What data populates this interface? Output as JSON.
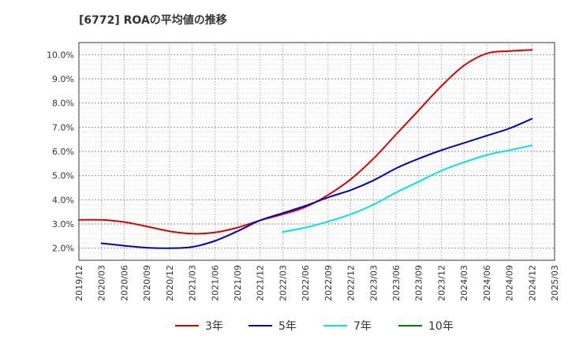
{
  "chart_data": {
    "type": "line",
    "title": "[6772]  ROAの平均値の推移",
    "xlabel": "",
    "ylabel": "",
    "x_ticks": [
      "2019/12",
      "2020/03",
      "2020/06",
      "2020/09",
      "2020/12",
      "2021/03",
      "2021/06",
      "2021/09",
      "2021/12",
      "2022/03",
      "2022/06",
      "2022/09",
      "2022/12",
      "2023/03",
      "2023/06",
      "2023/09",
      "2023/12",
      "2024/03",
      "2024/06",
      "2024/09",
      "2024/12",
      "2025/03"
    ],
    "y_ticks": [
      "2.0%",
      "3.0%",
      "4.0%",
      "5.0%",
      "6.0%",
      "7.0%",
      "8.0%",
      "9.0%",
      "10.0%"
    ],
    "ylim": [
      1.5,
      10.5
    ],
    "grid": true,
    "legend_position": "bottom",
    "series": [
      {
        "name": "3年",
        "color": "#dd0000",
        "x": [
          "2019/12",
          "2020/03",
          "2020/06",
          "2020/09",
          "2020/12",
          "2021/03",
          "2021/06",
          "2021/09",
          "2021/12",
          "2022/03",
          "2022/06",
          "2022/09",
          "2022/12",
          "2023/03",
          "2023/06",
          "2023/09",
          "2023/12",
          "2024/03",
          "2024/06",
          "2024/09",
          "2024/12"
        ],
        "values": [
          3.17,
          3.17,
          3.08,
          2.9,
          2.7,
          2.6,
          2.65,
          2.85,
          3.15,
          3.4,
          3.7,
          4.2,
          4.85,
          5.7,
          6.7,
          7.7,
          8.7,
          9.55,
          10.05,
          10.15,
          10.2
        ]
      },
      {
        "name": "5年",
        "color": "#0000cc",
        "x": [
          "2020/03",
          "2020/06",
          "2020/09",
          "2020/12",
          "2021/03",
          "2021/06",
          "2021/09",
          "2021/12",
          "2022/03",
          "2022/06",
          "2022/09",
          "2022/12",
          "2023/03",
          "2023/06",
          "2023/09",
          "2023/12",
          "2024/03",
          "2024/06",
          "2024/09",
          "2024/12"
        ],
        "values": [
          2.2,
          2.1,
          2.02,
          2.0,
          2.05,
          2.3,
          2.7,
          3.15,
          3.45,
          3.75,
          4.1,
          4.4,
          4.8,
          5.3,
          5.7,
          6.05,
          6.35,
          6.65,
          6.95,
          7.35
        ]
      },
      {
        "name": "7年",
        "color": "#00e5e5",
        "x": [
          "2022/03",
          "2022/06",
          "2022/09",
          "2022/12",
          "2023/03",
          "2023/06",
          "2023/09",
          "2023/12",
          "2024/03",
          "2024/06",
          "2024/09",
          "2024/12"
        ],
        "values": [
          2.67,
          2.85,
          3.1,
          3.4,
          3.8,
          4.3,
          4.75,
          5.2,
          5.55,
          5.85,
          6.05,
          6.25
        ]
      },
      {
        "name": "10年",
        "color": "#008000",
        "x": [],
        "values": []
      }
    ]
  }
}
